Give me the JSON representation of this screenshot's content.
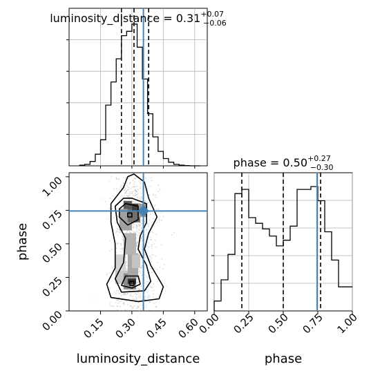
{
  "chart_data": {
    "type": "corner",
    "parameters": [
      "luminosity_distance",
      "phase"
    ],
    "truths": {
      "luminosity_distance": 0.355,
      "phase": 0.745
    },
    "grid": true,
    "panels": {
      "luminosity_distance_hist": {
        "type": "histogram",
        "title": {
          "prefix": "luminosity_distance = ",
          "value": "0.31",
          "plus": "+0.07",
          "minus": "−0.06"
        },
        "xlim": [
          0.0,
          0.66
        ],
        "bin_edges": [
          0.05,
          0.075,
          0.1,
          0.125,
          0.15,
          0.175,
          0.2,
          0.225,
          0.25,
          0.275,
          0.3,
          0.325,
          0.35,
          0.375,
          0.4,
          0.425,
          0.45,
          0.475,
          0.5,
          0.525,
          0.55,
          0.575,
          0.6,
          0.625
        ],
        "counts": [
          0.005,
          0.01,
          0.03,
          0.08,
          0.18,
          0.42,
          0.58,
          0.74,
          0.9,
          0.93,
          0.98,
          0.82,
          0.6,
          0.36,
          0.2,
          0.1,
          0.05,
          0.025,
          0.01,
          0.005,
          0.002,
          0,
          0
        ],
        "quantiles": [
          0.25,
          0.31,
          0.38
        ]
      },
      "phase_hist": {
        "type": "histogram",
        "title": {
          "prefix": "phase = ",
          "value": "0.50",
          "plus": "+0.27",
          "minus": "−0.30"
        },
        "xlim": [
          0.0,
          1.0
        ],
        "xticks": [
          "0.00",
          "0.25",
          "0.50",
          "0.75",
          "1.00"
        ],
        "xlabel": "phase",
        "bin_edges": [
          0.0,
          0.05,
          0.1,
          0.15,
          0.2,
          0.25,
          0.3,
          0.35,
          0.4,
          0.45,
          0.5,
          0.55,
          0.6,
          0.65,
          0.7,
          0.75,
          0.8,
          0.85,
          0.9,
          0.95,
          1.0
        ],
        "counts": [
          0.07,
          0.22,
          0.4,
          0.83,
          0.86,
          0.66,
          0.62,
          0.58,
          0.53,
          0.46,
          0.5,
          0.6,
          0.86,
          0.86,
          0.88,
          0.78,
          0.56,
          0.36,
          0.17,
          0.17
        ],
        "quantiles": [
          0.2,
          0.5,
          0.77
        ]
      },
      "joint": {
        "type": "2d-histogram-contour",
        "xlim": [
          0.0,
          0.66
        ],
        "ylim": [
          0.0,
          1.03
        ],
        "xticks": [
          "0.15",
          "0.30",
          "0.45",
          "0.60"
        ],
        "yticks": [
          "0.00",
          "0.25",
          "0.50",
          "0.75",
          "1.00"
        ],
        "xlabel": "luminosity_distance",
        "ylabel": "phase"
      }
    }
  }
}
